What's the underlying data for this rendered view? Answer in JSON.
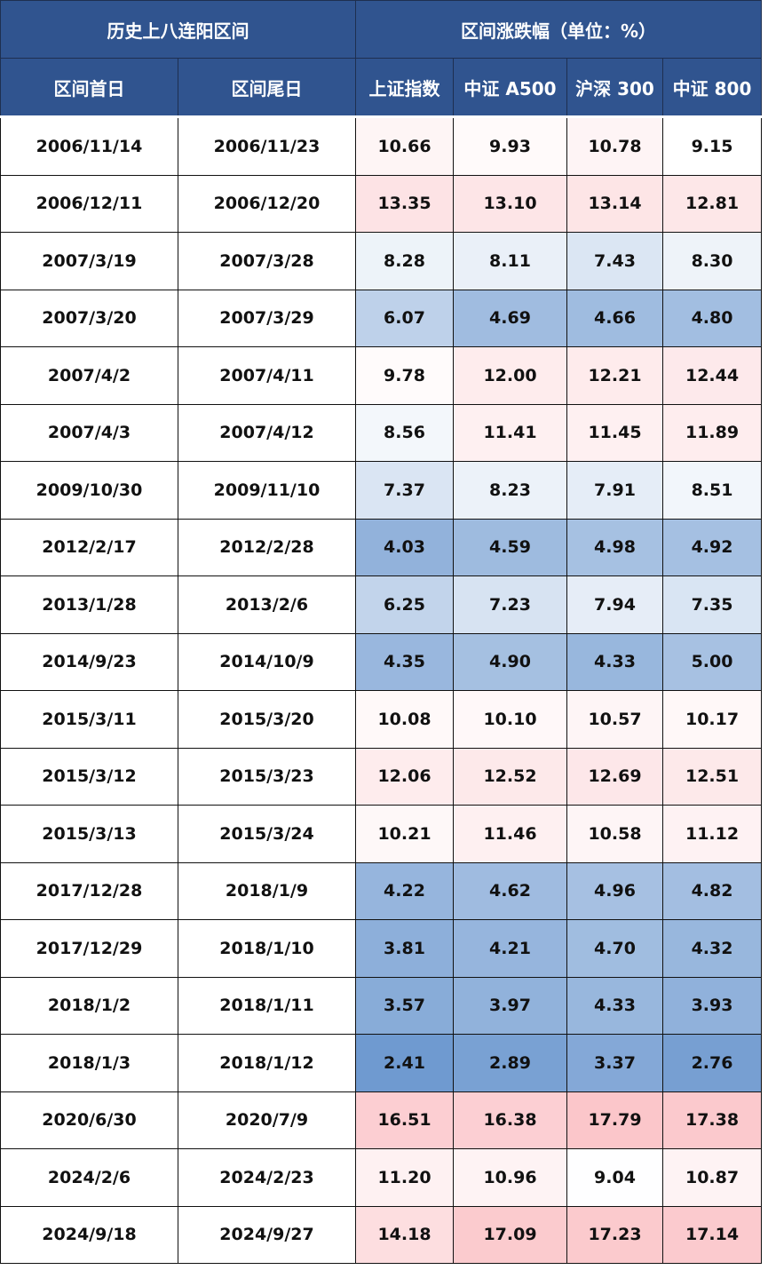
{
  "chart_data": {
    "type": "table",
    "header_groups": [
      "历史上八连阳区间",
      "区间涨跌幅（单位：%）"
    ],
    "columns": [
      "区间首日",
      "区间尾日",
      "上证指数",
      "中证 A500",
      "沪深 300",
      "中证 800"
    ],
    "rows": [
      [
        "2006/11/14",
        "2006/11/23",
        "10.66",
        "9.93",
        "10.78",
        "9.15"
      ],
      [
        "2006/12/11",
        "2006/12/20",
        "13.35",
        "13.10",
        "13.14",
        "12.81"
      ],
      [
        "2007/3/19",
        "2007/3/28",
        "8.28",
        "8.11",
        "7.43",
        "8.30"
      ],
      [
        "2007/3/20",
        "2007/3/29",
        "6.07",
        "4.69",
        "4.66",
        "4.80"
      ],
      [
        "2007/4/2",
        "2007/4/11",
        "9.78",
        "12.00",
        "12.21",
        "12.44"
      ],
      [
        "2007/4/3",
        "2007/4/12",
        "8.56",
        "11.41",
        "11.45",
        "11.89"
      ],
      [
        "2009/10/30",
        "2009/11/10",
        "7.37",
        "8.23",
        "7.91",
        "8.51"
      ],
      [
        "2012/2/17",
        "2012/2/28",
        "4.03",
        "4.59",
        "4.98",
        "4.92"
      ],
      [
        "2013/1/28",
        "2013/2/6",
        "6.25",
        "7.23",
        "7.94",
        "7.35"
      ],
      [
        "2014/9/23",
        "2014/10/9",
        "4.35",
        "4.90",
        "4.33",
        "5.00"
      ],
      [
        "2015/3/11",
        "2015/3/20",
        "10.08",
        "10.10",
        "10.57",
        "10.17"
      ],
      [
        "2015/3/12",
        "2015/3/23",
        "12.06",
        "12.52",
        "12.69",
        "12.51"
      ],
      [
        "2015/3/13",
        "2015/3/24",
        "10.21",
        "11.46",
        "10.58",
        "11.12"
      ],
      [
        "2017/12/28",
        "2018/1/9",
        "4.22",
        "4.62",
        "4.96",
        "4.82"
      ],
      [
        "2017/12/29",
        "2018/1/10",
        "3.81",
        "4.21",
        "4.70",
        "4.32"
      ],
      [
        "2018/1/2",
        "2018/1/11",
        "3.57",
        "3.97",
        "4.33",
        "3.93"
      ],
      [
        "2018/1/3",
        "2018/1/12",
        "2.41",
        "2.89",
        "3.37",
        "2.76"
      ],
      [
        "2020/6/30",
        "2020/7/9",
        "16.51",
        "16.38",
        "17.79",
        "17.38"
      ],
      [
        "2024/2/6",
        "2024/2/23",
        "11.20",
        "10.96",
        "9.04",
        "10.87"
      ],
      [
        "2024/9/18",
        "2024/9/27",
        "14.18",
        "17.09",
        "17.23",
        "17.14"
      ]
    ],
    "color_scale": {
      "low": "#6f9ad0",
      "mid": "#ffffff",
      "high": "#fbc6ca"
    },
    "header_color": "#30548f"
  }
}
